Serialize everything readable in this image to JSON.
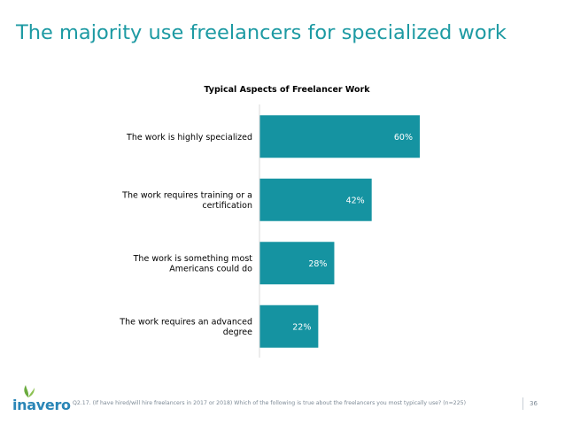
{
  "slide": {
    "title": "The majority use freelancers for specialized work",
    "footnote": "Q2.17. (If have hired/will hire freelancers in 2017 or 2018) Which of the following is true about the freelancers you most typically use? (n=225)",
    "page_number": "36",
    "logo_text": "inavero"
  },
  "colors": {
    "title": "#1d9aa3",
    "bar": "#1593a1",
    "bar_label": "#ffffff",
    "axis": "#d9d9d9",
    "logo_blue": "#2a86b7",
    "logo_green": "#6aab3e"
  },
  "chart_data": {
    "type": "bar",
    "orientation": "horizontal",
    "title": "Typical Aspects of Freelancer Work",
    "categories": [
      [
        "The work is highly specialized"
      ],
      [
        "The work requires training or a",
        "certification"
      ],
      [
        "The work is something most",
        "Americans could do"
      ],
      [
        "The work requires an advanced",
        "degree"
      ]
    ],
    "values": [
      60,
      42,
      28,
      22
    ],
    "value_labels": [
      "60%",
      "42%",
      "28%",
      "22%"
    ],
    "xlim": [
      0,
      100
    ],
    "grid": false,
    "legend": "none"
  }
}
